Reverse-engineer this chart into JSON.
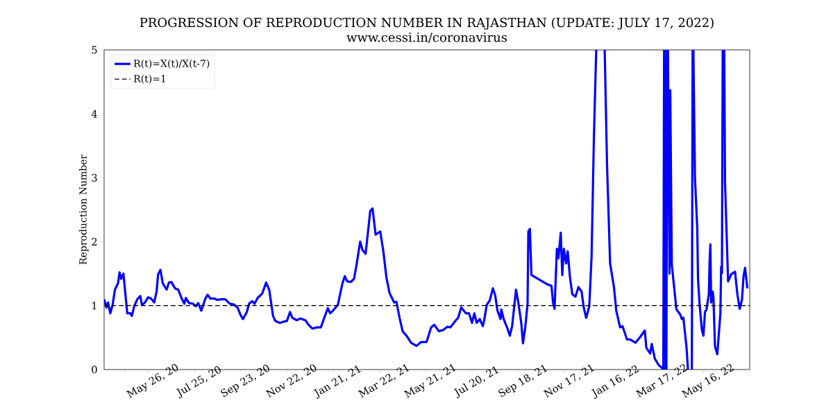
{
  "chart_data": {
    "type": "line",
    "title": "PROGRESSION OF REPRODUCTION NUMBER IN RAJASTHAN (UPDATE: JULY 17, 2022)",
    "subtitle": "www.cessi.in/coronavirus",
    "ylabel": "Reproduction Number",
    "xlim": [
      "2020-03-30",
      "2022-07-15"
    ],
    "ylim": [
      0,
      5
    ],
    "yticks": [
      0,
      1,
      2,
      3,
      4,
      5
    ],
    "xticks": [
      {
        "value": "2020-04-26",
        "label": null
      },
      {
        "value": "2020-05-26",
        "label": "May 26, 20"
      },
      {
        "value": "2020-06-25",
        "label": null
      },
      {
        "value": "2020-07-25",
        "label": "Jul 25, 20"
      },
      {
        "value": "2020-08-24",
        "label": null
      },
      {
        "value": "2020-09-23",
        "label": "Sep 23, 20"
      },
      {
        "value": "2020-10-23",
        "label": null
      },
      {
        "value": "2020-11-22",
        "label": "Nov 22, 20"
      },
      {
        "value": "2020-12-22",
        "label": null
      },
      {
        "value": "2021-01-21",
        "label": "Jan 21, 21"
      },
      {
        "value": "2021-02-20",
        "label": null
      },
      {
        "value": "2021-03-22",
        "label": "Mar 22, 21"
      },
      {
        "value": "2021-04-21",
        "label": null
      },
      {
        "value": "2021-05-21",
        "label": "May 21, 21"
      },
      {
        "value": "2021-06-20",
        "label": null
      },
      {
        "value": "2021-07-20",
        "label": "Jul 20, 21"
      },
      {
        "value": "2021-08-19",
        "label": null
      },
      {
        "value": "2021-09-18",
        "label": "Sep 18, 21"
      },
      {
        "value": "2021-10-18",
        "label": null
      },
      {
        "value": "2021-11-17",
        "label": "Nov 17, 21"
      },
      {
        "value": "2021-12-17",
        "label": null
      },
      {
        "value": "2022-01-16",
        "label": "Jan 16, 22"
      },
      {
        "value": "2022-02-15",
        "label": null
      },
      {
        "value": "2022-03-17",
        "label": "Mar 17, 22"
      },
      {
        "value": "2022-04-16",
        "label": null
      },
      {
        "value": "2022-05-16",
        "label": "May 16, 22"
      },
      {
        "value": "2022-06-15",
        "label": null
      },
      {
        "value": "2022-07-15",
        "label": null
      }
    ],
    "legend": "top left",
    "ref_lines": [
      {
        "axis": "y",
        "value": 1,
        "label": "R(t)=1",
        "color": "#000000",
        "line_style": "dashed"
      }
    ],
    "series": [
      {
        "name": "R(t)=X(t)/X(t-7)",
        "color": "#0000ff",
        "x": [
          "2020-03-30",
          "2020-04-02",
          "2020-04-04",
          "2020-04-07",
          "2020-04-10",
          "2020-04-13",
          "2020-04-17",
          "2020-04-19",
          "2020-04-21",
          "2020-04-24",
          "2020-04-26",
          "2020-04-29",
          "2020-05-03",
          "2020-05-05",
          "2020-05-08",
          "2020-05-12",
          "2020-05-16",
          "2020-05-18",
          "2020-05-22",
          "2020-05-26",
          "2020-05-30",
          "2020-06-03",
          "2020-06-06",
          "2020-06-08",
          "2020-06-11",
          "2020-06-14",
          "2020-06-19",
          "2020-06-22",
          "2020-06-25",
          "2020-06-30",
          "2020-07-04",
          "2020-07-09",
          "2020-07-12",
          "2020-07-14",
          "2020-07-18",
          "2020-07-23",
          "2020-07-27",
          "2020-07-30",
          "2020-08-03",
          "2020-08-08",
          "2020-08-11",
          "2020-08-15",
          "2020-08-20",
          "2020-08-24",
          "2020-08-29",
          "2020-09-03",
          "2020-09-09",
          "2020-09-14",
          "2020-09-19",
          "2020-09-23",
          "2020-09-26",
          "2020-10-01",
          "2020-10-04",
          "2020-10-08",
          "2020-10-11",
          "2020-10-15",
          "2020-10-21",
          "2020-10-26",
          "2020-10-30",
          "2020-11-04",
          "2020-11-07",
          "2020-11-13",
          "2020-11-18",
          "2020-11-22",
          "2020-11-26",
          "2020-11-29",
          "2020-12-05",
          "2020-12-09",
          "2020-12-16",
          "2020-12-20",
          "2020-12-25",
          "2020-12-31",
          "2021-01-05",
          "2021-01-10",
          "2021-01-14",
          "2021-01-17",
          "2021-01-20",
          "2021-01-24",
          "2021-01-27",
          "2021-01-30",
          "2021-02-02",
          "2021-02-05",
          "2021-02-08",
          "2021-02-13",
          "2021-02-17",
          "2021-02-20",
          "2021-02-25",
          "2021-02-28",
          "2021-03-04",
          "2021-03-07",
          "2021-03-10",
          "2021-03-13",
          "2021-03-17",
          "2021-03-23",
          "2021-03-27",
          "2021-03-31",
          "2021-04-04",
          "2021-04-10",
          "2021-04-13",
          "2021-04-17",
          "2021-04-21",
          "2021-04-26",
          "2021-05-02",
          "2021-05-09",
          "2021-05-15",
          "2021-05-22",
          "2021-05-28",
          "2021-06-01",
          "2021-06-07",
          "2021-06-13",
          "2021-06-18",
          "2021-06-22",
          "2021-06-29",
          "2021-07-02",
          "2021-07-06",
          "2021-07-12",
          "2021-07-16",
          "2021-07-20",
          "2021-07-23",
          "2021-07-26",
          "2021-07-30",
          "2021-08-03",
          "2021-08-05",
          "2021-08-08",
          "2021-08-12",
          "2021-08-16",
          "2021-08-19",
          "2021-08-22",
          "2021-08-26",
          "2021-08-27",
          "2021-08-30",
          "2021-09-04",
          "2021-09-07",
          "2021-09-10",
          "2021-09-15",
          "2021-09-18",
          "2021-09-22",
          "2021-09-24",
          "2021-09-27",
          "2021-09-30",
          "2021-10-01",
          "2021-10-03",
          "2021-10-05",
          "2021-10-26",
          "2021-10-31",
          "2021-11-02",
          "2021-11-04",
          "2021-11-07",
          "2021-11-09",
          "2021-11-12",
          "2021-11-14",
          "2021-11-16",
          "2021-11-19",
          "2021-11-21",
          "2021-11-24",
          "2021-11-27",
          "2021-12-01",
          "2021-12-05",
          "2021-12-09",
          "2021-12-12",
          "2021-12-15",
          "2021-12-19",
          "2021-12-22",
          "2021-12-25",
          "2021-12-28",
          "2022-01-03",
          "2022-01-08",
          "2022-01-11",
          "2022-01-15",
          "2022-01-20",
          "2022-01-23",
          "2022-01-28",
          "2022-01-31",
          "2022-02-06",
          "2022-02-10",
          "2022-02-17",
          "2022-02-23",
          "2022-03-01",
          "2022-03-03",
          "2022-03-08",
          "2022-03-10",
          "2022-03-14",
          "2022-03-19",
          "2022-03-23",
          "2022-03-25",
          "2022-03-26",
          "2022-03-26T12:00",
          "2022-03-27",
          "2022-03-28",
          "2022-03-28T12:00",
          "2022-03-29",
          "2022-03-30",
          "2022-03-30T12:00",
          "2022-03-31",
          "2022-04-02",
          "2022-04-03",
          "2022-04-05",
          "2022-04-08",
          "2022-04-11",
          "2022-04-16",
          "2022-04-18",
          "2022-04-20",
          "2022-04-24",
          "2022-04-26",
          "2022-04-28",
          "2022-05-01",
          "2022-05-02",
          "2022-05-02T12:00",
          "2022-05-03",
          "2022-05-05",
          "2022-05-08",
          "2022-05-09",
          "2022-05-11",
          "2022-05-14",
          "2022-05-16",
          "2022-05-18",
          "2022-05-20",
          "2022-05-23",
          "2022-05-24",
          "2022-05-25",
          "2022-05-26",
          "2022-05-28",
          "2022-05-29",
          "2022-05-31",
          "2022-06-03",
          "2022-06-07",
          "2022-06-08",
          "2022-06-09",
          "2022-06-10",
          "2022-06-11",
          "2022-06-12",
          "2022-06-13",
          "2022-06-17",
          "2022-06-21",
          "2022-06-26",
          "2022-06-29",
          "2022-07-02",
          "2022-07-05",
          "2022-07-07",
          "2022-07-09",
          "2022-07-12"
        ],
        "values": [
          1.1,
          0.97,
          1.05,
          0.88,
          1.01,
          1.25,
          1.35,
          1.52,
          1.42,
          1.5,
          1.25,
          0.88,
          0.88,
          0.84,
          0.99,
          1.1,
          1.15,
          1.01,
          1.05,
          1.13,
          1.11,
          1.05,
          1.22,
          1.49,
          1.56,
          1.35,
          1.25,
          1.36,
          1.37,
          1.27,
          1.25,
          1.1,
          1.03,
          1.12,
          1.04,
          1.03,
          0.99,
          1.04,
          0.92,
          1.1,
          1.17,
          1.11,
          1.11,
          1.09,
          1.1,
          1.1,
          1.03,
          1.02,
          0.97,
          0.85,
          0.79,
          0.9,
          1.03,
          1.07,
          1.03,
          1.12,
          1.19,
          1.36,
          1.25,
          0.84,
          0.76,
          0.73,
          0.75,
          0.76,
          0.9,
          0.81,
          0.77,
          0.8,
          0.77,
          0.7,
          0.64,
          0.66,
          0.66,
          0.83,
          0.96,
          0.88,
          0.91,
          0.97,
          1.01,
          1.18,
          1.35,
          1.46,
          1.38,
          1.37,
          1.42,
          1.62,
          2.0,
          1.87,
          1.81,
          2.14,
          2.48,
          2.52,
          2.11,
          2.16,
          1.85,
          1.44,
          1.2,
          1.05,
          1.06,
          0.81,
          0.6,
          0.53,
          0.42,
          0.37,
          0.43,
          0.43,
          0.66,
          0.7,
          0.6,
          0.62,
          0.67,
          0.66,
          0.77,
          0.81,
          0.97,
          0.88,
          0.88,
          0.73,
          0.88,
          0.73,
          0.79,
          0.68,
          0.79,
          1.01,
          1.08,
          1.27,
          1.16,
          0.92,
          0.79,
          0.94,
          0.79,
          0.64,
          0.53,
          0.68,
          1.25,
          1.05,
          0.71,
          0.41,
          0.66,
          1.03,
          2.16,
          2.2,
          1.48,
          1.33,
          1.31,
          1.05,
          0.95,
          1.89,
          1.74,
          2.14,
          1.48,
          1.89,
          1.66,
          1.85,
          1.44,
          1.18,
          1.14,
          1.29,
          1.22,
          0.96,
          0.81,
          0.99,
          1.77,
          3.63,
          5,
          null,
          5,
          3.22,
          1.66,
          1.29,
          0.92,
          0.66,
          0.68,
          0.47,
          0.47,
          0.42,
          0.51,
          0.61,
          0.34,
          0.25,
          0.4,
          0.17,
          0.07,
          0.03,
          0,
          5,
          null,
          5,
          0,
          null,
          0,
          5,
          null,
          5,
          1.5,
          4.37,
          1.64,
          1.29,
          0.94,
          0.86,
          0.79,
          0.81,
          0.36,
          0,
          null,
          0,
          5,
          null,
          5,
          3.0,
          2.22,
          1.41,
          1.03,
          0.62,
          0.53,
          0.9,
          0.94,
          1.18,
          1.68,
          1.96,
          1.05,
          1.22,
          1.12,
          0.36,
          0.24,
          0.88,
          1.61,
          1.51,
          5,
          null,
          5,
          2.93,
          1.38,
          1.49,
          1.53,
          1.18,
          0.95,
          1.09,
          1.46,
          1.59,
          1.27
        ]
      }
    ]
  }
}
